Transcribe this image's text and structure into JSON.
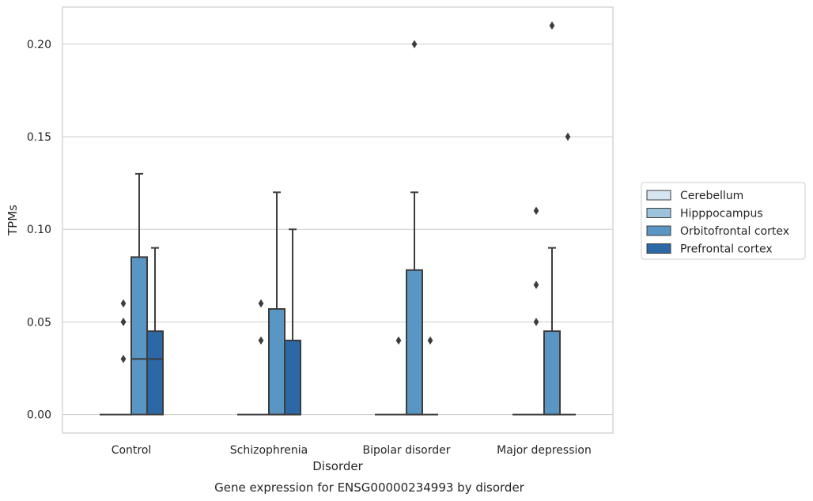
{
  "chart_data": {
    "type": "box",
    "caption": "Gene expression for ENSG00000234993 by disorder",
    "xlabel": "Disorder",
    "ylabel": "TPMs",
    "ylim": [
      -0.01,
      0.22
    ],
    "yticks": [
      0.0,
      0.05,
      0.1,
      0.15,
      0.2
    ],
    "ytick_labels": [
      "0.00",
      "0.05",
      "0.10",
      "0.15",
      "0.20"
    ],
    "grid": "horizontal",
    "legend_position": "right",
    "categories": [
      "Control",
      "Schizophrenia",
      "Bipolar disorder",
      "Major depression"
    ],
    "series": [
      {
        "name": "Cerebellum",
        "color": "#d6e5f2",
        "boxes": [
          {
            "q1": 0,
            "median": 0,
            "q3": 0,
            "whisker_low": 0,
            "whisker_high": 0,
            "outliers": []
          },
          {
            "q1": 0,
            "median": 0,
            "q3": 0,
            "whisker_low": 0,
            "whisker_high": 0,
            "outliers": []
          },
          {
            "q1": 0,
            "median": 0,
            "q3": 0,
            "whisker_low": 0,
            "whisker_high": 0,
            "outliers": []
          },
          {
            "q1": 0,
            "median": 0,
            "q3": 0,
            "whisker_low": 0,
            "whisker_high": 0,
            "outliers": []
          }
        ]
      },
      {
        "name": "Hipppocampus",
        "color": "#9cc3dc",
        "boxes": [
          {
            "q1": 0,
            "median": 0,
            "q3": 0,
            "whisker_low": 0,
            "whisker_high": 0,
            "outliers": [
              0.03,
              0.05
            ]
          },
          {
            "q1": 0,
            "median": 0,
            "q3": 0,
            "whisker_low": 0,
            "whisker_high": 0,
            "outliers": [
              0.04,
              0.06
            ]
          },
          {
            "q1": 0,
            "median": 0,
            "q3": 0,
            "whisker_low": 0,
            "whisker_high": 0,
            "outliers": [
              0.04
            ]
          },
          {
            "q1": 0,
            "median": 0,
            "q3": 0,
            "whisker_low": 0,
            "whisker_high": 0,
            "outliers": []
          }
        ]
      },
      {
        "name": "Orbitofrontal cortex",
        "color": "#5996c3",
        "boxes": [
          {
            "q1": 0,
            "median": 0.03,
            "q3": 0.085,
            "whisker_low": 0,
            "whisker_high": 0.13,
            "outliers": []
          },
          {
            "q1": 0,
            "median": 0,
            "q3": 0.057,
            "whisker_low": 0,
            "whisker_high": 0.12,
            "outliers": []
          },
          {
            "q1": 0,
            "median": 0,
            "q3": 0.078,
            "whisker_low": 0,
            "whisker_high": 0.12,
            "outliers": [
              0.2
            ]
          },
          {
            "q1": 0,
            "median": 0,
            "q3": 0.045,
            "whisker_low": 0,
            "whisker_high": 0.09,
            "outliers": [
              0.21
            ]
          }
        ]
      },
      {
        "name": "Prefrontal cortex",
        "color": "#2b68a5",
        "boxes": [
          {
            "q1": 0,
            "median": 0.03,
            "q3": 0.045,
            "whisker_low": 0,
            "whisker_high": 0.09,
            "outliers": []
          },
          {
            "q1": 0,
            "median": 0,
            "q3": 0.04,
            "whisker_low": 0,
            "whisker_high": 0.1,
            "outliers": []
          },
          {
            "q1": 0,
            "median": 0,
            "q3": 0,
            "whisker_low": 0,
            "whisker_high": 0,
            "outliers": [
              0.04
            ]
          },
          {
            "q1": 0,
            "median": 0,
            "q3": 0,
            "whisker_low": 0,
            "whisker_high": 0,
            "outliers": [
              0.15
            ]
          }
        ]
      }
    ],
    "extra_outliers": [
      {
        "category": 0,
        "series": 1,
        "value": 0.05,
        "offset": 1
      },
      {
        "category": 0,
        "series": 1,
        "value": 0.06,
        "offset": 1
      },
      {
        "category": 3,
        "series": 1,
        "value": 0.05,
        "offset": 1
      },
      {
        "category": 3,
        "series": 1,
        "value": 0.07,
        "offset": 1
      },
      {
        "category": 3,
        "series": 1,
        "value": 0.11,
        "offset": 1
      }
    ]
  }
}
